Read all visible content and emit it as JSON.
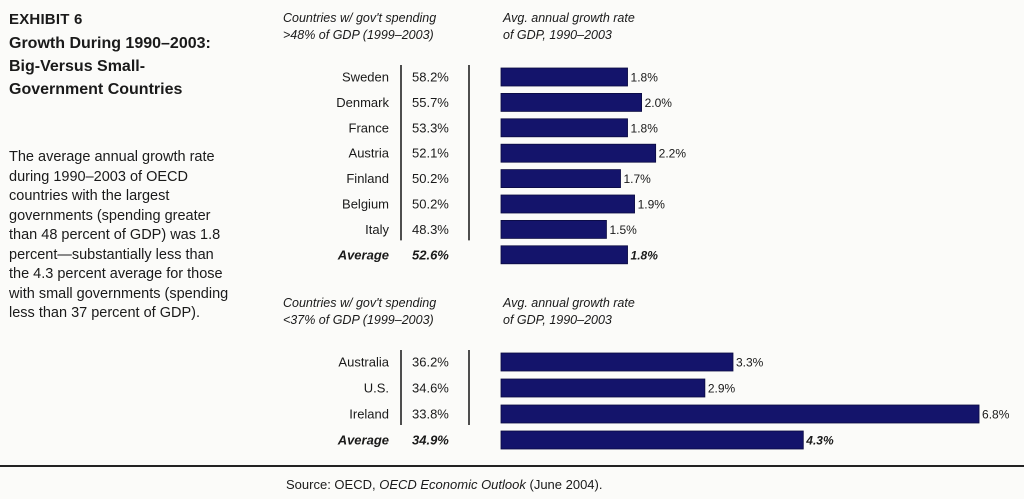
{
  "exhibit": {
    "label": "EXHIBIT 6",
    "title": "Growth During 1990–2003: Big-Versus Small-Government Countries",
    "description": "The average annual growth rate during 1990–2003 of OECD countries with the largest governments (spending greater than 48 percent of GDP) was 1.8 percent—substantially less than the 4.3 percent average for those with small governments (spending less than 37 percent of GDP)."
  },
  "source": {
    "prefix": "Source: OECD, ",
    "title": "OECD Economic Outlook",
    "suffix": " (June 2004)."
  },
  "colors": {
    "bar": "#14146b",
    "text": "#1a1a1a"
  },
  "chart_data": [
    {
      "type": "bar",
      "orientation": "horizontal",
      "spending_header": [
        "Countries w/ gov't spending",
        ">48% of GDP (1999–2003)"
      ],
      "growth_header": [
        "Avg. annual growth rate",
        "of GDP, 1990–2003"
      ],
      "categories": [
        "Sweden",
        "Denmark",
        "France",
        "Austria",
        "Finland",
        "Belgium",
        "Italy",
        "Average"
      ],
      "spending": [
        "58.2%",
        "55.7%",
        "53.3%",
        "52.1%",
        "50.2%",
        "50.2%",
        "48.3%",
        "52.6%"
      ],
      "values": [
        1.8,
        2.0,
        1.8,
        2.2,
        1.7,
        1.9,
        1.5,
        1.8
      ],
      "value_labels": [
        "1.8%",
        "2.0%",
        "1.8%",
        "2.2%",
        "1.7%",
        "1.9%",
        "1.5%",
        "1.8%"
      ],
      "average_row": true,
      "unit": "%"
    },
    {
      "type": "bar",
      "orientation": "horizontal",
      "spending_header": [
        "Countries w/ gov't spending",
        "<37% of GDP (1999–2003)"
      ],
      "growth_header": [
        "Avg. annual growth rate",
        "of GDP, 1990–2003"
      ],
      "categories": [
        "Australia",
        "U.S.",
        "Ireland",
        "Average"
      ],
      "spending": [
        "36.2%",
        "34.6%",
        "33.8%",
        "34.9%"
      ],
      "values": [
        3.3,
        2.9,
        6.8,
        4.3
      ],
      "value_labels": [
        "3.3%",
        "2.9%",
        "6.8%",
        "4.3%"
      ],
      "average_row": true,
      "unit": "%"
    }
  ]
}
